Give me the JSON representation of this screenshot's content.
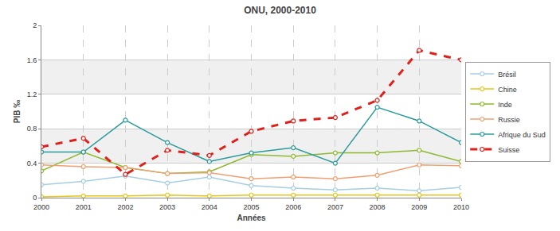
{
  "chart_data": {
    "type": "line",
    "title": "ONU, 2000-2010",
    "x_label": "Années",
    "y_label": "PIB ‰",
    "x": [
      2000,
      2001,
      2002,
      2003,
      2004,
      2005,
      2006,
      2007,
      2008,
      2009,
      2010
    ],
    "series": [
      {
        "name": "Brésil",
        "color": "#a6cee3",
        "line_style": "solid",
        "values": [
          0.15,
          0.19,
          0.25,
          0.17,
          0.24,
          0.14,
          0.11,
          0.09,
          0.11,
          0.08,
          0.12
        ]
      },
      {
        "name": "Chine",
        "color": "#e6c619",
        "line_style": "solid",
        "values": [
          0.01,
          0.02,
          0.02,
          0.03,
          0.02,
          0.03,
          0.03,
          0.03,
          0.03,
          0.03,
          0.03
        ]
      },
      {
        "name": "Inde",
        "color": "#8db92e",
        "line_style": "solid",
        "values": [
          0.31,
          0.53,
          0.35,
          0.28,
          0.3,
          0.5,
          0.48,
          0.52,
          0.52,
          0.55,
          0.42
        ]
      },
      {
        "name": "Russie",
        "color": "#f0a070",
        "line_style": "solid",
        "values": [
          0.38,
          0.36,
          0.35,
          0.28,
          0.29,
          0.22,
          0.24,
          0.22,
          0.26,
          0.38,
          0.37
        ]
      },
      {
        "name": "Afrique du Sud",
        "color": "#2a9a9a",
        "line_style": "solid",
        "values": [
          0.53,
          0.53,
          0.9,
          0.64,
          0.42,
          0.52,
          0.58,
          0.4,
          1.05,
          0.89,
          0.64
        ]
      },
      {
        "name": "Suisse",
        "color": "#e0201b",
        "line_style": "dashed",
        "values": [
          0.59,
          0.69,
          0.27,
          0.55,
          0.49,
          0.77,
          0.89,
          0.93,
          1.13,
          1.71,
          1.6
        ]
      }
    ],
    "xlim": [
      2000,
      2010
    ],
    "xticks": [
      2000,
      2001,
      2002,
      2003,
      2004,
      2005,
      2006,
      2007,
      2008,
      2009,
      2010
    ],
    "ylim": [
      0,
      2
    ],
    "yticks": [
      0,
      0.4,
      0.8,
      1.2,
      1.6,
      2
    ],
    "grid": true,
    "legend": "right",
    "marker": "circle"
  }
}
